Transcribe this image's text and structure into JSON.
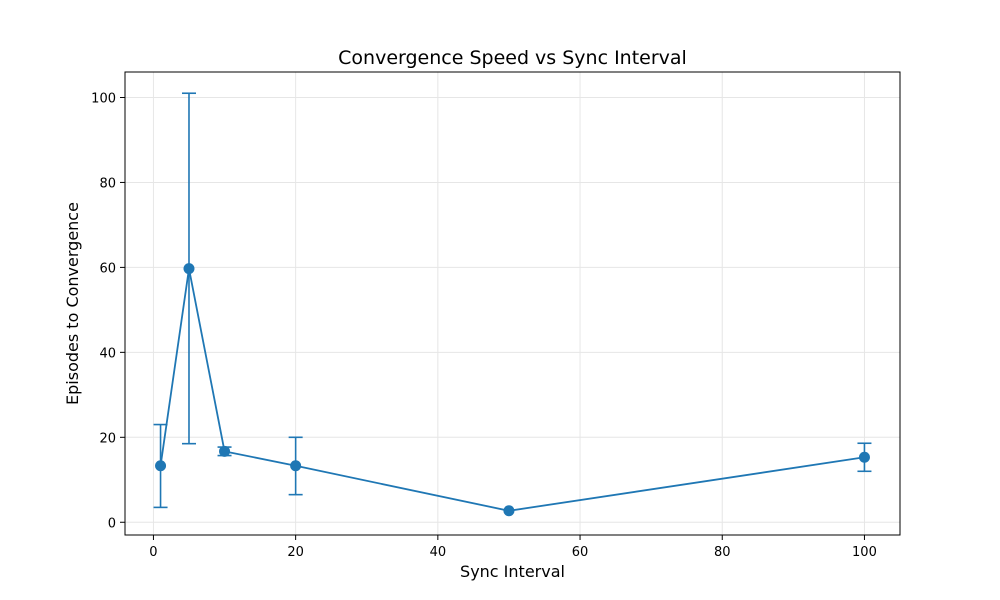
{
  "chart_data": {
    "type": "line",
    "title": "Convergence Speed vs Sync Interval",
    "xlabel": "Sync Interval",
    "ylabel": "Episodes to Convergence",
    "xlim": [
      -4,
      105
    ],
    "ylim": [
      -3,
      106
    ],
    "xticks": [
      0,
      20,
      40,
      60,
      80,
      100
    ],
    "yticks": [
      0,
      20,
      40,
      60,
      80,
      100
    ],
    "grid": true,
    "series": [
      {
        "x": [
          1,
          5,
          10,
          20,
          50,
          100
        ],
        "y": [
          13.3,
          59.7,
          16.7,
          13.3,
          2.7,
          15.3
        ],
        "yerr_low": [
          3.5,
          18.5,
          15.7,
          6.5,
          2.7,
          12.0
        ],
        "yerr_high": [
          23.0,
          101.0,
          17.7,
          20.0,
          2.7,
          18.6
        ],
        "color": "#1f77b4",
        "marker": "circle"
      }
    ]
  }
}
